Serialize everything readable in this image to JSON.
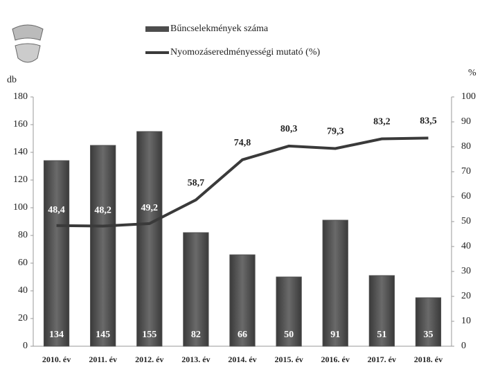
{
  "chart_data": {
    "type": "combo",
    "categories": [
      "2010. év",
      "2011. év",
      "2012. év",
      "2013. év",
      "2014. év",
      "2015. év",
      "2016. év",
      "2017. év",
      "2018. év"
    ],
    "series": [
      {
        "name": "Bűncselekmények száma",
        "type": "bar",
        "color": "#4d4d4d",
        "values": [
          134,
          145,
          155,
          82,
          66,
          50,
          91,
          51,
          35
        ]
      },
      {
        "name": "Nyomozáseredményességi mutató (%)",
        "type": "line",
        "axis": "y2",
        "color": "#3a3a3a",
        "values": [
          48.4,
          48.2,
          49.2,
          58.7,
          74.8,
          80.3,
          79.3,
          83.2,
          83.5
        ],
        "value_labels": [
          "48,4",
          "48,2",
          "49,2",
          "58,7",
          "74,8",
          "80,3",
          "79,3",
          "83,2",
          "83,5"
        ]
      }
    ],
    "ylabel": "db",
    "y2label": "%",
    "ylim": [
      0,
      180
    ],
    "yticks": [
      0,
      20,
      40,
      60,
      80,
      100,
      120,
      140,
      160,
      180
    ],
    "y2lim": [
      0,
      100
    ],
    "y2ticks": [
      0,
      10,
      20,
      30,
      40,
      50,
      60,
      70,
      80,
      90,
      100
    ]
  }
}
